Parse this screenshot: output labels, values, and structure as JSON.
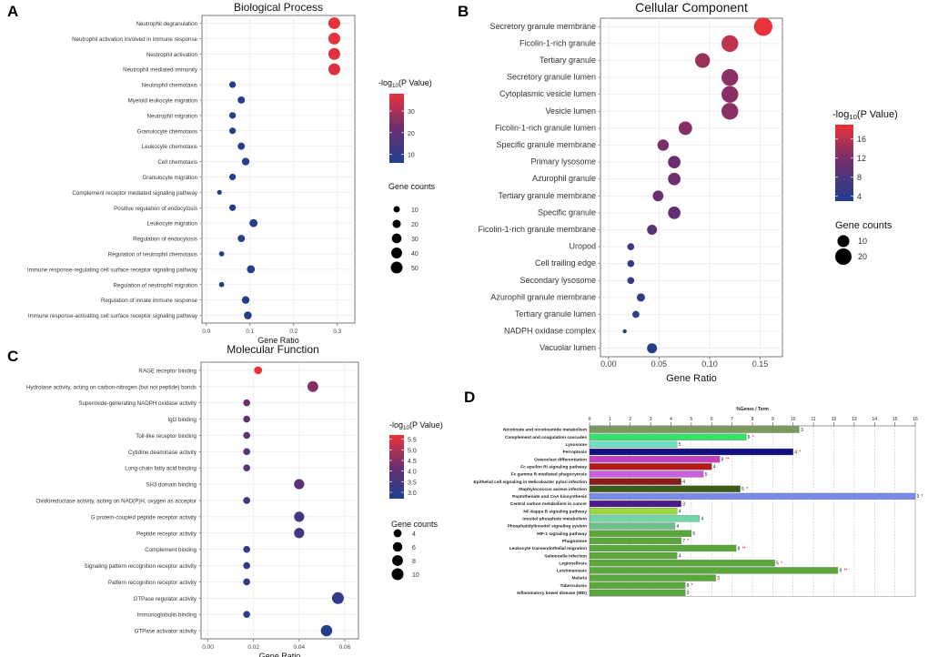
{
  "panel_letters": [
    "A",
    "B",
    "C",
    "D"
  ],
  "colors": {
    "high": "#e8333a",
    "mid": "#6b2f6f",
    "low": "#1f3f8e",
    "grid": "#ebebeb"
  },
  "chart_data": [
    {
      "id": "A",
      "type": "scatter",
      "title": "Biological Process",
      "xlabel": "Gene Ratio",
      "xlim": [
        -0.01,
        0.34
      ],
      "xticks": [
        0.0,
        0.1,
        0.2,
        0.3
      ],
      "xticklabels": [
        "0.0",
        "0.1",
        "0.2",
        "0.3"
      ],
      "color_legend": {
        "title": "-log10(P Value)",
        "min": 6,
        "max": 38,
        "ticks": [
          10,
          20,
          30
        ]
      },
      "size_legend": {
        "title": "Gene counts",
        "values": [
          10,
          20,
          30,
          40,
          50
        ]
      },
      "points": [
        {
          "term": "Neutrophil degranulation",
          "ratio": 0.293,
          "count": 50,
          "logp": 38
        },
        {
          "term": "Neutrophil activation involved in immune response",
          "ratio": 0.293,
          "count": 50,
          "logp": 37.5
        },
        {
          "term": "Neutrophil activation",
          "ratio": 0.293,
          "count": 50,
          "logp": 37
        },
        {
          "term": "Neutrophil mediated immunity",
          "ratio": 0.293,
          "count": 50,
          "logp": 36.5
        },
        {
          "term": "Neutrophil chemotaxis",
          "ratio": 0.06,
          "count": 11,
          "logp": 7
        },
        {
          "term": "Myeloid leukocyte migration",
          "ratio": 0.08,
          "count": 14,
          "logp": 7.5
        },
        {
          "term": "Neutrophil migration",
          "ratio": 0.06,
          "count": 11,
          "logp": 7
        },
        {
          "term": "Granulocyte chemotaxis",
          "ratio": 0.06,
          "count": 11,
          "logp": 7
        },
        {
          "term": "Leukocyte chemotaxis",
          "ratio": 0.08,
          "count": 14,
          "logp": 7.5
        },
        {
          "term": "Cell chemotaxis",
          "ratio": 0.09,
          "count": 16,
          "logp": 7.5
        },
        {
          "term": "Granulocyte migration",
          "ratio": 0.06,
          "count": 11,
          "logp": 7
        },
        {
          "term": "Complement receptor mediated signaling pathway",
          "ratio": 0.03,
          "count": 5,
          "logp": 6.5
        },
        {
          "term": "Positive regulation of endocytosis",
          "ratio": 0.06,
          "count": 11,
          "logp": 7
        },
        {
          "term": "Leukocyte migration",
          "ratio": 0.108,
          "count": 19,
          "logp": 7.5
        },
        {
          "term": "Regulation of endocytosis",
          "ratio": 0.08,
          "count": 14,
          "logp": 7
        },
        {
          "term": "Regulation of neutrophil chemotaxis",
          "ratio": 0.035,
          "count": 6,
          "logp": 6.5
        },
        {
          "term": "Immune response-regulating cell surface receptor signaling pathway",
          "ratio": 0.102,
          "count": 18,
          "logp": 7
        },
        {
          "term": "Regulation of neutrophil migration",
          "ratio": 0.035,
          "count": 6,
          "logp": 6.5
        },
        {
          "term": "Regulation of innate immune response",
          "ratio": 0.09,
          "count": 16,
          "logp": 7
        },
        {
          "term": "Immune response-activating cell surface receptor signaling pathway",
          "ratio": 0.095,
          "count": 17,
          "logp": 7
        }
      ]
    },
    {
      "id": "B",
      "type": "scatter",
      "title": "Cellular Component",
      "xlabel": "Gene Ratio",
      "xlim": [
        -0.008,
        0.172
      ],
      "xticks": [
        0.0,
        0.05,
        0.1,
        0.15
      ],
      "xticklabels": [
        "0.00",
        "0.05",
        "0.10",
        "0.15"
      ],
      "color_legend": {
        "title": "-log10(P Value)",
        "min": 3,
        "max": 19,
        "ticks": [
          4,
          8,
          12,
          16
        ]
      },
      "size_legend": {
        "title": "Gene counts",
        "values": [
          10,
          20
        ]
      },
      "points": [
        {
          "term": "Secretory granule membrane",
          "ratio": 0.153,
          "count": 26,
          "logp": 19
        },
        {
          "term": "Ficolin-1-rich granule",
          "ratio": 0.12,
          "count": 21,
          "logp": 16.5
        },
        {
          "term": "Tertiary granule",
          "ratio": 0.093,
          "count": 16,
          "logp": 14
        },
        {
          "term": "Secretory granule lumen",
          "ratio": 0.12,
          "count": 21,
          "logp": 13
        },
        {
          "term": "Cytoplasmic vesicle lumen",
          "ratio": 0.12,
          "count": 21,
          "logp": 13
        },
        {
          "term": "Vesicle lumen",
          "ratio": 0.12,
          "count": 21,
          "logp": 13
        },
        {
          "term": "Ficolin-1-rich granule lumen",
          "ratio": 0.076,
          "count": 13,
          "logp": 12.5
        },
        {
          "term": "Specific granule membrane",
          "ratio": 0.054,
          "count": 9,
          "logp": 12
        },
        {
          "term": "Primary lysosome",
          "ratio": 0.065,
          "count": 11,
          "logp": 11
        },
        {
          "term": "Azurophil granule",
          "ratio": 0.065,
          "count": 11,
          "logp": 11
        },
        {
          "term": "Tertiary granule membrane",
          "ratio": 0.049,
          "count": 8,
          "logp": 11
        },
        {
          "term": "Specific granule",
          "ratio": 0.065,
          "count": 11,
          "logp": 10
        },
        {
          "term": "Ficolin-1-rich granule membrane",
          "ratio": 0.043,
          "count": 7,
          "logp": 9
        },
        {
          "term": "Uropod",
          "ratio": 0.022,
          "count": 4,
          "logp": 6
        },
        {
          "term": "Cell trailing edge",
          "ratio": 0.022,
          "count": 4,
          "logp": 5.5
        },
        {
          "term": "Secondary lysosome",
          "ratio": 0.022,
          "count": 4,
          "logp": 5.5
        },
        {
          "term": "Azurophil granule membrane",
          "ratio": 0.032,
          "count": 5,
          "logp": 5
        },
        {
          "term": "Tertiary granule lumen",
          "ratio": 0.027,
          "count": 4,
          "logp": 4.5
        },
        {
          "term": "NADPH oxidase complex",
          "ratio": 0.016,
          "count": 3,
          "logp": 4
        },
        {
          "term": "Vacuolar lumen",
          "ratio": 0.043,
          "count": 7,
          "logp": 3.5
        }
      ]
    },
    {
      "id": "C",
      "type": "scatter",
      "title": "Molecular Function",
      "xlabel": "Gene Ratio",
      "xlim": [
        -0.003,
        0.066
      ],
      "xticks": [
        0.0,
        0.02,
        0.04,
        0.06
      ],
      "xticklabels": [
        "0.00",
        "0.02",
        "0.04",
        "0.06"
      ],
      "color_legend": {
        "title": "-log10(P Value)",
        "min": 2.7,
        "max": 5.7,
        "ticks": [
          3.0,
          3.5,
          4.0,
          4.5,
          5.0,
          5.5
        ],
        "ticklabels": [
          "3.0",
          "3.5",
          "4.0",
          "4.5",
          "5.0",
          "5.5"
        ]
      },
      "size_legend": {
        "title": "Gene counts",
        "values": [
          4,
          6,
          8,
          10
        ]
      },
      "points": [
        {
          "term": "RAGE receptor binding",
          "ratio": 0.022,
          "count": 4,
          "logp": 5.7
        },
        {
          "term": "Hydrolase activity, acting on carbon-nitrogen (but not peptide) bonds",
          "ratio": 0.046,
          "count": 8,
          "logp": 4.5
        },
        {
          "term": "Superoxide-generating NADPH oxidase activity",
          "ratio": 0.017,
          "count": 3,
          "logp": 4.2
        },
        {
          "term": "IgG binding",
          "ratio": 0.017,
          "count": 3,
          "logp": 4.0
        },
        {
          "term": "Toll-like receptor binding",
          "ratio": 0.017,
          "count": 3,
          "logp": 3.9
        },
        {
          "term": "Cytidine deaminase activity",
          "ratio": 0.017,
          "count": 3,
          "logp": 3.8
        },
        {
          "term": "Long-chain fatty acid binding",
          "ratio": 0.017,
          "count": 3,
          "logp": 3.8
        },
        {
          "term": "SH3 domain binding",
          "ratio": 0.04,
          "count": 7,
          "logp": 3.9
        },
        {
          "term": "Oxidoreductase activity, acting on NAD(P)H, oxygen as acceptor",
          "ratio": 0.017,
          "count": 3,
          "logp": 3.5
        },
        {
          "term": "G protein-coupled peptide receptor activity",
          "ratio": 0.04,
          "count": 7,
          "logp": 3.4
        },
        {
          "term": "Peptide receptor activity",
          "ratio": 0.04,
          "count": 7,
          "logp": 3.4
        },
        {
          "term": "Complement binding",
          "ratio": 0.017,
          "count": 3,
          "logp": 3.2
        },
        {
          "term": "Signaling pattern recognition receptor activity",
          "ratio": 0.017,
          "count": 3,
          "logp": 3.1
        },
        {
          "term": "Pattern recognition receptor activity",
          "ratio": 0.017,
          "count": 3,
          "logp": 3.1
        },
        {
          "term": "GTPase regulator activity",
          "ratio": 0.057,
          "count": 10,
          "logp": 3.1
        },
        {
          "term": "Immunoglobulin binding",
          "ratio": 0.017,
          "count": 3,
          "logp": 3.0
        },
        {
          "term": "GTPase activator activity",
          "ratio": 0.052,
          "count": 9,
          "logp": 2.8
        }
      ]
    },
    {
      "id": "D",
      "type": "bar",
      "orientation": "horizontal",
      "xlabel": "%Genes / Term",
      "xlim": [
        0,
        16
      ],
      "xticks": [
        0,
        1,
        2,
        3,
        4,
        5,
        6,
        7,
        8,
        9,
        10,
        11,
        12,
        13,
        14,
        15,
        16
      ],
      "bars": [
        {
          "term": "Nicotinate and nicotinamide metabolism",
          "pct": 10.3,
          "count": "3",
          "stars": "",
          "color": "#7a9a5a"
        },
        {
          "term": "Complement and coagulation cascades",
          "pct": 7.7,
          "count": "6",
          "stars": "*",
          "color": "#33e36a"
        },
        {
          "term": "Lysosome",
          "pct": 4.3,
          "count": "5",
          "stars": "",
          "color": "#6fe0c4"
        },
        {
          "term": "Ferroptosis",
          "pct": 10.0,
          "count": "4",
          "stars": "*",
          "color": "#101080"
        },
        {
          "term": "Osteoclast differentiation",
          "pct": 6.4,
          "count": "8",
          "stars": "**",
          "color": "#c040c0"
        },
        {
          "term": "Fc epsilon RI signaling pathway",
          "pct": 6.0,
          "count": "4",
          "stars": "",
          "color": "#b21a1a"
        },
        {
          "term": "Fc gamma R-mediated phagocytosis",
          "pct": 5.6,
          "count": "5",
          "stars": "",
          "color": "#c860e0"
        },
        {
          "term": "Epithelial cell signaling in Helicobacter pylori infection",
          "pct": 4.5,
          "count": "4",
          "stars": "",
          "color": "#8a1a1a"
        },
        {
          "term": "Staphylococcus aureus infection",
          "pct": 7.4,
          "count": "5",
          "stars": "*",
          "color": "#3c5a1a"
        },
        {
          "term": "Pantothenate and CoA biosynthesis",
          "pct": 16.0,
          "count": "3",
          "stars": "*",
          "color": "#7a8ae8"
        },
        {
          "term": "Central carbon metabolism in cancer",
          "pct": 4.5,
          "count": "3",
          "stars": "",
          "color": "#4a1a8a"
        },
        {
          "term": "NF-kappa B signaling pathway",
          "pct": 4.3,
          "count": "4",
          "stars": "",
          "color": "#9ad840"
        },
        {
          "term": "Inositol phosphate metabolism",
          "pct": 5.4,
          "count": "4",
          "stars": "",
          "color": "#6fd6a8"
        },
        {
          "term": "Phosphatidylinositol signaling system",
          "pct": 4.2,
          "count": "4",
          "stars": "",
          "color": "#6cc08a"
        },
        {
          "term": "HIF-1 signaling pathway",
          "pct": 5.0,
          "count": "5",
          "stars": "",
          "color": "#5aa83a"
        },
        {
          "term": "Phagosome",
          "pct": 4.5,
          "count": "7",
          "stars": "*",
          "color": "#5aa83a"
        },
        {
          "term": "Leukocyte transendothelial migration",
          "pct": 7.2,
          "count": "8",
          "stars": "**",
          "color": "#5aa83a"
        },
        {
          "term": "Salmonella infection",
          "pct": 4.3,
          "count": "4",
          "stars": "",
          "color": "#5aa83a"
        },
        {
          "term": "Legionellosis",
          "pct": 9.1,
          "count": "5",
          "stars": "*",
          "color": "#5aa83a"
        },
        {
          "term": "Leishmaniasis",
          "pct": 12.2,
          "count": "9",
          "stars": "**",
          "color": "#5aa83a"
        },
        {
          "term": "Malaria",
          "pct": 6.2,
          "count": "3",
          "stars": "",
          "color": "#5aa83a"
        },
        {
          "term": "Tuberculosis",
          "pct": 4.7,
          "count": "8",
          "stars": "*",
          "color": "#5aa83a"
        },
        {
          "term": "Inflammatory bowel disease (IBD)",
          "pct": 4.7,
          "count": "3",
          "stars": "",
          "color": "#5aa83a"
        }
      ]
    }
  ]
}
